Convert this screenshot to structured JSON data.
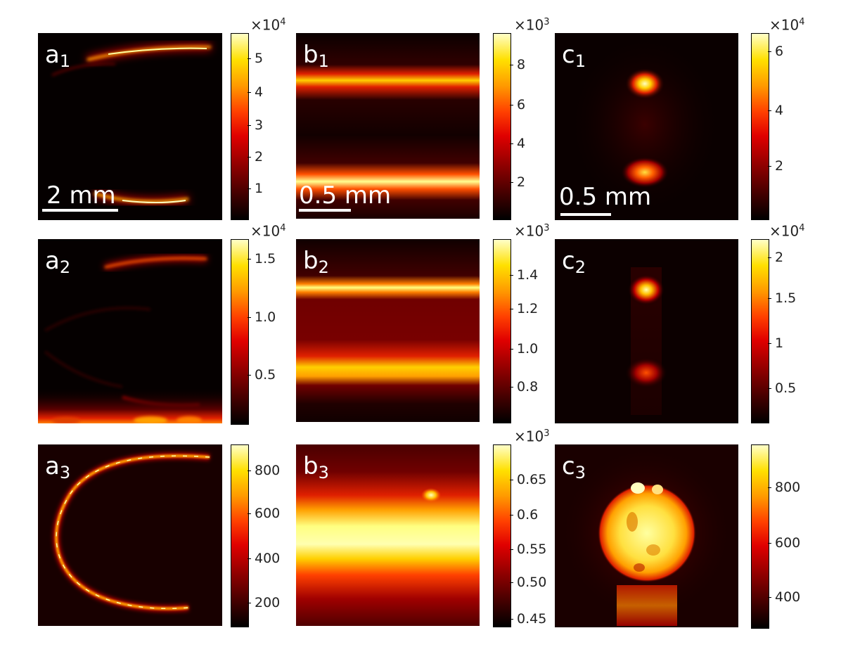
{
  "colormap": [
    "#000000",
    "#8a0000",
    "#e00000",
    "#ff9a00",
    "#ffe000",
    "#ffffc8"
  ],
  "panels": {
    "a1": {
      "label": "a",
      "sub": "1",
      "scale": "2 mm"
    },
    "b1": {
      "label": "b",
      "sub": "1",
      "scale": "0.5 mm"
    },
    "c1": {
      "label": "c",
      "sub": "1",
      "scale": "0.5 mm"
    },
    "a2": {
      "label": "a",
      "sub": "2"
    },
    "b2": {
      "label": "b",
      "sub": "2"
    },
    "c2": {
      "label": "c",
      "sub": "2"
    },
    "a3": {
      "label": "a",
      "sub": "3"
    },
    "b3": {
      "label": "b",
      "sub": "3"
    },
    "c3": {
      "label": "c",
      "sub": "3"
    }
  },
  "colorbars": {
    "a1": {
      "exp_base": "×10",
      "exp_pow": "4",
      "ticks": [
        "5",
        "4",
        "3",
        "2",
        "1"
      ]
    },
    "b1": {
      "exp_base": "×10",
      "exp_pow": "3",
      "ticks": [
        "8",
        "6",
        "4",
        "2"
      ]
    },
    "c1": {
      "exp_base": "×10",
      "exp_pow": "4",
      "ticks": [
        "6",
        "4",
        "2"
      ]
    },
    "a2": {
      "exp_base": "×10",
      "exp_pow": "4",
      "ticks": [
        "1.5",
        "1.0",
        "0.5"
      ]
    },
    "b2": {
      "exp_base": "×10",
      "exp_pow": "3",
      "ticks": [
        "1.4",
        "1.2",
        "1.0",
        "0.8"
      ]
    },
    "c2": {
      "exp_base": "×10",
      "exp_pow": "4",
      "ticks": [
        "2",
        "1.5",
        "1",
        "0.5"
      ]
    },
    "a3": {
      "ticks": [
        "800",
        "600",
        "400",
        "200"
      ]
    },
    "b3": {
      "exp_base": "×10",
      "exp_pow": "3",
      "ticks": [
        "0.65",
        "0.6",
        "0.55",
        "0.50",
        "0.45"
      ]
    },
    "c3": {
      "ticks": [
        "800",
        "600",
        "400"
      ]
    }
  }
}
